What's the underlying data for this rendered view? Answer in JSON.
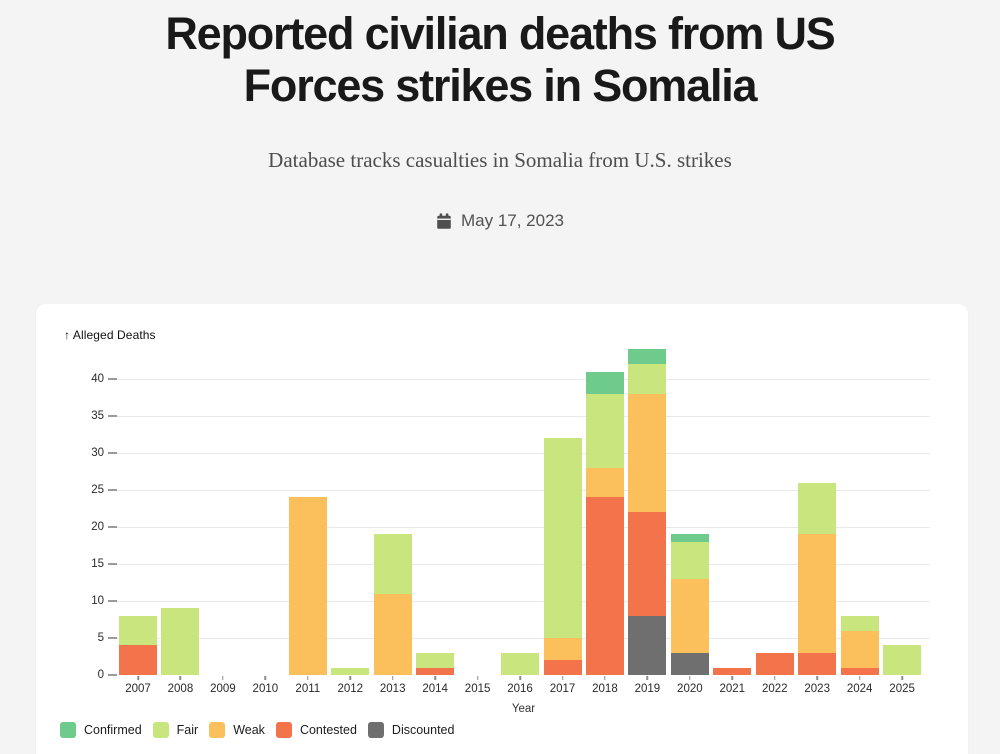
{
  "header": {
    "title_line1": "Reported civilian deaths from US",
    "title_line2": "Forces strikes in Somalia",
    "subtitle": "Database tracks casualties in Somalia from U.S. strikes",
    "date": "May 17, 2023",
    "date_icon": "calendar-icon"
  },
  "chart_data": {
    "type": "bar",
    "stacked": true,
    "title": "Reported civilian deaths from US Forces strikes in Somalia",
    "xlabel": "Year",
    "ylabel": "↑ Alleged Deaths",
    "categories": [
      "2007",
      "2008",
      "2009",
      "2010",
      "2011",
      "2012",
      "2013",
      "2014",
      "2015",
      "2016",
      "2017",
      "2018",
      "2019",
      "2020",
      "2021",
      "2022",
      "2023",
      "2024",
      "2025"
    ],
    "series": [
      {
        "name": "Discounted",
        "color": "#6f6f6f",
        "values": [
          0,
          0,
          0,
          0,
          0,
          0,
          0,
          0,
          0,
          0,
          0,
          0,
          8,
          3,
          0,
          0,
          0,
          0,
          0
        ]
      },
      {
        "name": "Contested",
        "color": "#f3734a",
        "values": [
          4,
          0,
          0,
          0,
          0,
          0,
          0,
          1,
          0,
          0,
          2,
          24,
          14,
          0,
          1,
          3,
          3,
          1,
          0
        ]
      },
      {
        "name": "Weak",
        "color": "#fbbf5c",
        "values": [
          0,
          0,
          0,
          0,
          24,
          0,
          11,
          0,
          0,
          0,
          3,
          4,
          16,
          10,
          0,
          0,
          16,
          5,
          0
        ]
      },
      {
        "name": "Fair",
        "color": "#c8e57e",
        "values": [
          4,
          9,
          0,
          0,
          0,
          1,
          8,
          2,
          0,
          3,
          27,
          10,
          4,
          5,
          0,
          0,
          7,
          2,
          4
        ]
      },
      {
        "name": "Confirmed",
        "color": "#6ecb8b",
        "values": [
          0,
          0,
          0,
          0,
          0,
          0,
          0,
          0,
          0,
          0,
          0,
          3,
          2,
          1,
          0,
          0,
          0,
          0,
          0
        ]
      }
    ],
    "totals": [
      8,
      9,
      0,
      0,
      24,
      1,
      19,
      3,
      0,
      3,
      32,
      41,
      44,
      19,
      1,
      3,
      26,
      8,
      4
    ],
    "legend": [
      "Confirmed",
      "Fair",
      "Weak",
      "Contested",
      "Discounted"
    ],
    "legend_position": "bottom-left",
    "y_ticks": [
      0,
      5,
      10,
      15,
      20,
      25,
      30,
      35,
      40
    ],
    "ylim": [
      0,
      44
    ],
    "grid": true
  }
}
